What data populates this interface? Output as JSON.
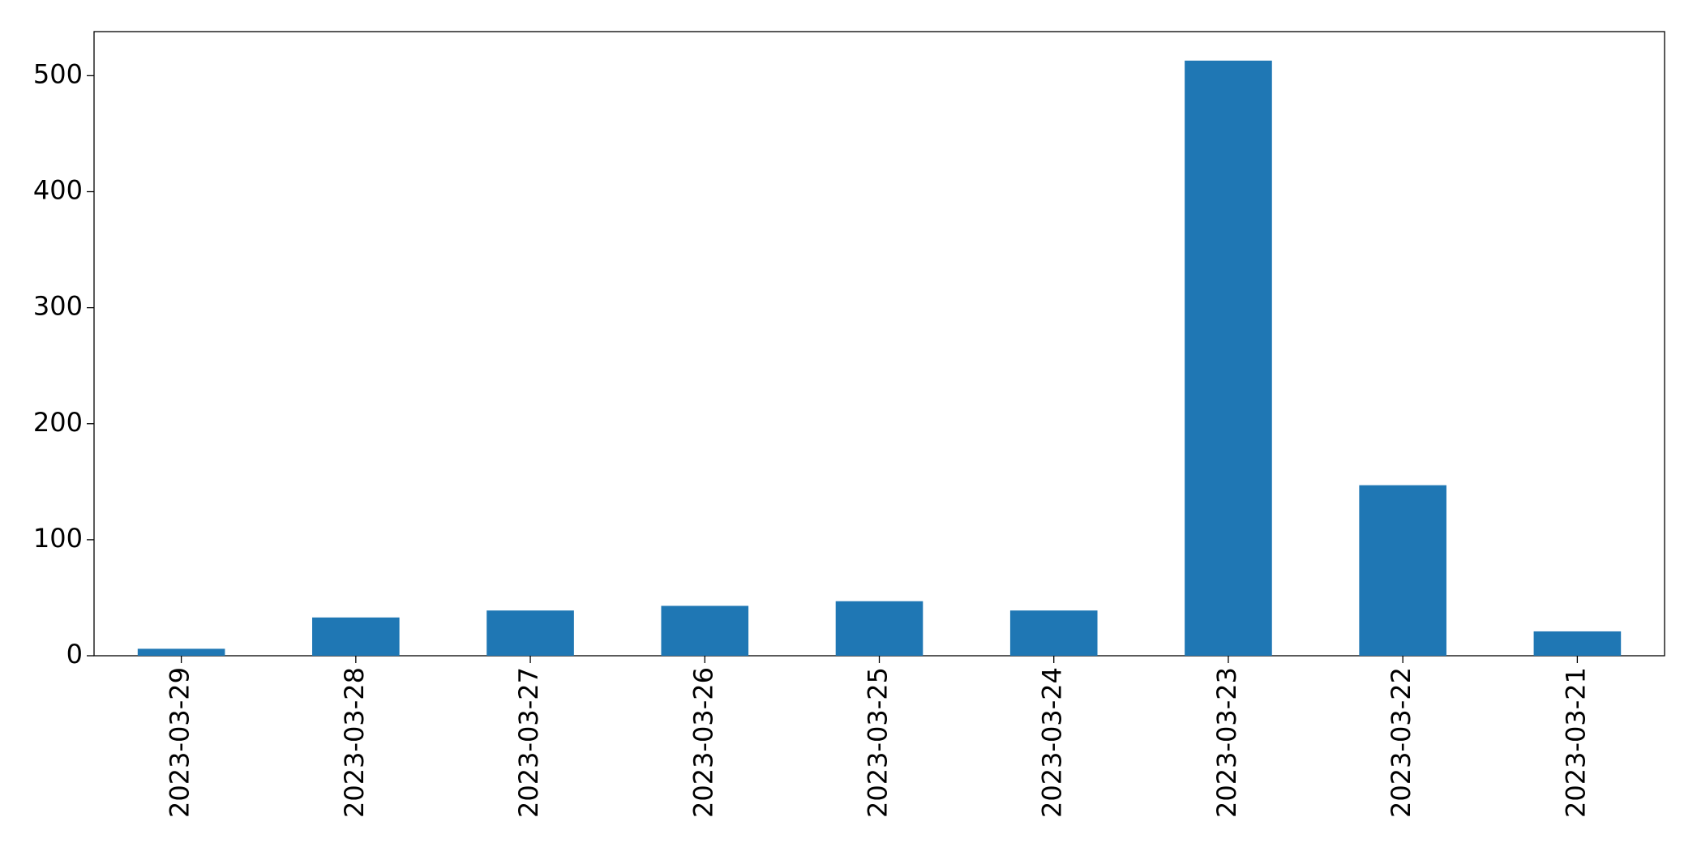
{
  "chart_data": {
    "type": "bar",
    "categories": [
      "2023-03-29",
      "2023-03-28",
      "2023-03-27",
      "2023-03-26",
      "2023-03-25",
      "2023-03-24",
      "2023-03-23",
      "2023-03-22",
      "2023-03-21"
    ],
    "values": [
      6,
      33,
      39,
      43,
      47,
      39,
      513,
      147,
      21
    ],
    "color": "#1f77b4",
    "ylim": [
      0,
      538
    ],
    "yticks": [
      0,
      100,
      200,
      300,
      400,
      500
    ],
    "grid": false
  }
}
